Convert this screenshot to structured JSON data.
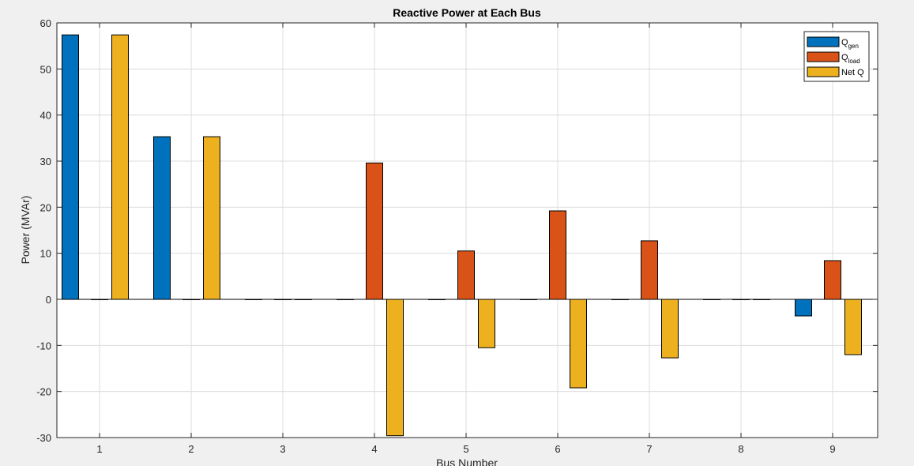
{
  "chart_data": {
    "type": "bar",
    "title": "Reactive Power at Each Bus",
    "xlabel": "Bus Number",
    "ylabel": "Power (MVAr)",
    "categories": [
      "1",
      "2",
      "3",
      "4",
      "5",
      "6",
      "7",
      "8",
      "9"
    ],
    "ylim": [
      -30,
      60
    ],
    "yticks": [
      "-30",
      "-20",
      "-10",
      "0",
      "10",
      "20",
      "30",
      "40",
      "50",
      "60"
    ],
    "grid": true,
    "legend_position": "top-right",
    "series": [
      {
        "name": "Q",
        "subscript": "gen",
        "color": "#0072bd",
        "values": [
          57.4,
          35.3,
          0,
          0,
          0,
          0,
          0,
          0,
          -3.6
        ]
      },
      {
        "name": "Q",
        "subscript": "load",
        "color": "#d95319",
        "values": [
          0,
          0,
          0,
          29.6,
          10.5,
          19.2,
          12.7,
          0,
          8.4
        ]
      },
      {
        "name": "Net Q",
        "subscript": "",
        "color": "#edb120",
        "values": [
          57.4,
          35.3,
          0,
          -29.6,
          -10.5,
          -19.2,
          -12.7,
          0,
          -12.0
        ]
      }
    ]
  }
}
